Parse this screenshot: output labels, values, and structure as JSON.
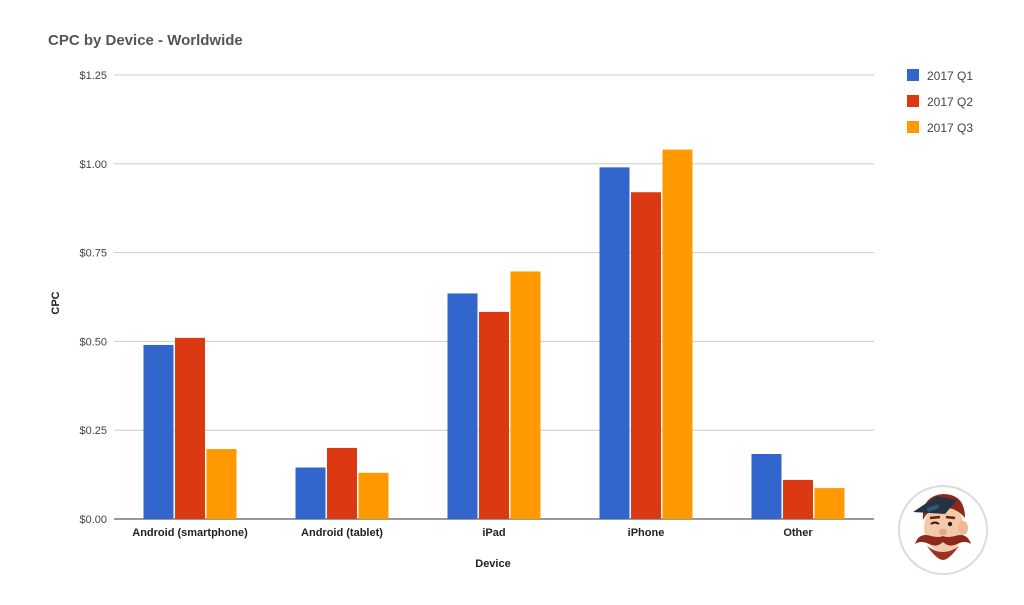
{
  "chart_data": {
    "type": "bar",
    "title": "CPC by Device - Worldwide",
    "xlabel": "Device",
    "ylabel": "CPC",
    "categories": [
      "Android (smartphone)",
      "Android (tablet)",
      "iPad",
      "iPhone",
      "Other"
    ],
    "series": [
      {
        "name": "2017 Q1",
        "color": "#3366cc",
        "values": [
          0.49,
          0.145,
          0.635,
          0.99,
          0.183
        ]
      },
      {
        "name": "2017 Q2",
        "color": "#dc3912",
        "values": [
          0.51,
          0.2,
          0.583,
          0.92,
          0.11
        ]
      },
      {
        "name": "2017 Q3",
        "color": "#ff9900",
        "values": [
          0.197,
          0.13,
          0.697,
          1.04,
          0.087
        ]
      }
    ],
    "ylim": [
      0,
      1.25
    ],
    "yticks": [
      {
        "value": 0,
        "label": "$0.00"
      },
      {
        "value": 0.25,
        "label": "$0.25"
      },
      {
        "value": 0.5,
        "label": "$0.50"
      },
      {
        "value": 0.75,
        "label": "$0.75"
      },
      {
        "value": 1.0,
        "label": "$1.00"
      },
      {
        "value": 1.25,
        "label": "$1.25"
      }
    ],
    "grid": true,
    "legend_position": "right"
  },
  "logo": {
    "icon": "mustache-mascot-icon"
  }
}
